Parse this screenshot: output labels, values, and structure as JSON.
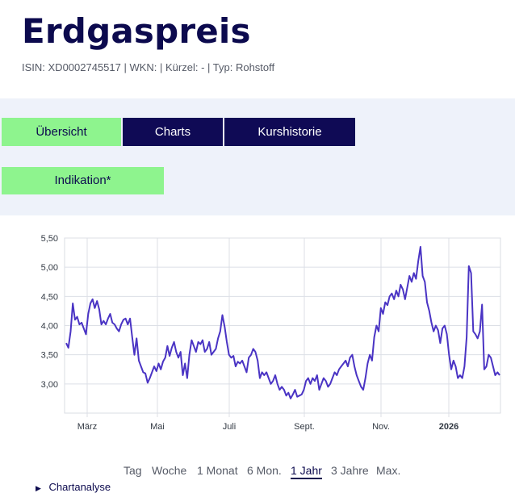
{
  "header": {
    "title": "Erdgaspreis",
    "meta": "ISIN: XD0002745517 | WKN: | Kürzel: - | Typ: Rohstoff"
  },
  "tabs": {
    "overview": "Übersicht",
    "charts": "Charts",
    "history": "Kurshistorie",
    "indication": "Indikation*"
  },
  "colors": {
    "line": "#4a34c4",
    "accent": "#8ef48e",
    "dark": "#0f0a55"
  },
  "chart_data": {
    "type": "line",
    "ylim": [
      2.5,
      5.5
    ],
    "yticks": [
      5.5,
      5.0,
      4.5,
      4.0,
      3.5,
      3.0
    ],
    "ytick_labels": [
      "5,50",
      "5,00",
      "4,50",
      "4,00",
      "3,50",
      "3,00"
    ],
    "xticks": [
      "März",
      "Mai",
      "Juli",
      "Sept.",
      "Nov.",
      "2026"
    ],
    "grid": true,
    "series": [
      {
        "values": [
          3.7,
          3.62,
          3.9,
          4.38,
          4.1,
          4.15,
          4.02,
          4.05,
          3.95,
          3.85,
          4.2,
          4.38,
          4.45,
          4.3,
          4.42,
          4.28,
          4.02,
          4.08,
          4.02,
          4.12,
          4.2,
          4.05,
          4.02,
          3.95,
          3.9,
          4.02,
          4.1,
          4.12,
          4.02,
          4.12,
          3.8,
          3.5,
          3.78,
          3.4,
          3.3,
          3.2,
          3.18,
          3.02,
          3.1,
          3.2,
          3.3,
          3.22,
          3.35,
          3.25,
          3.38,
          3.45,
          3.65,
          3.48,
          3.62,
          3.72,
          3.55,
          3.45,
          3.55,
          3.15,
          3.35,
          3.1,
          3.5,
          3.75,
          3.65,
          3.55,
          3.72,
          3.68,
          3.75,
          3.55,
          3.6,
          3.72,
          3.5,
          3.55,
          3.6,
          3.78,
          3.9,
          4.18,
          3.98,
          3.72,
          3.5,
          3.45,
          3.48,
          3.3,
          3.38,
          3.35,
          3.4,
          3.3,
          3.2,
          3.45,
          3.5,
          3.6,
          3.55,
          3.4,
          3.1,
          3.2,
          3.15,
          3.2,
          3.1,
          3.0,
          3.05,
          3.15,
          3.0,
          2.9,
          2.95,
          2.9,
          2.8,
          2.85,
          2.75,
          2.82,
          2.9,
          2.78,
          2.8,
          2.82,
          2.9,
          3.05,
          3.1,
          3.0,
          3.1,
          3.05,
          3.15,
          2.9,
          3.0,
          3.1,
          3.05,
          2.95,
          3.0,
          3.1,
          3.2,
          3.15,
          3.25,
          3.3,
          3.35,
          3.4,
          3.3,
          3.45,
          3.5,
          3.3,
          3.15,
          3.05,
          2.95,
          2.9,
          3.1,
          3.35,
          3.5,
          3.4,
          3.8,
          4.0,
          3.9,
          4.3,
          4.2,
          4.4,
          4.35,
          4.5,
          4.55,
          4.45,
          4.6,
          4.5,
          4.7,
          4.62,
          4.45,
          4.65,
          4.85,
          4.75,
          4.9,
          4.8,
          5.1,
          5.35,
          4.85,
          4.75,
          4.4,
          4.25,
          4.05,
          3.9,
          4.0,
          3.92,
          3.7,
          3.95,
          4.0,
          3.85,
          3.5,
          3.25,
          3.4,
          3.3,
          3.1,
          3.15,
          3.1,
          3.3,
          3.8,
          5.02,
          4.9,
          3.9,
          3.85,
          3.78,
          3.9,
          4.36,
          3.25,
          3.3,
          3.5,
          3.45,
          3.3,
          3.15,
          3.2,
          3.15
        ]
      }
    ],
    "time_ranges": [
      "Tag",
      "Woche",
      "1 Monat",
      "6 Mon.",
      "1 Jahr",
      "3 Jahre",
      "Max."
    ],
    "selected_range": "1 Jahr"
  },
  "footer": {
    "analysis_label": "Chartanalyse"
  }
}
